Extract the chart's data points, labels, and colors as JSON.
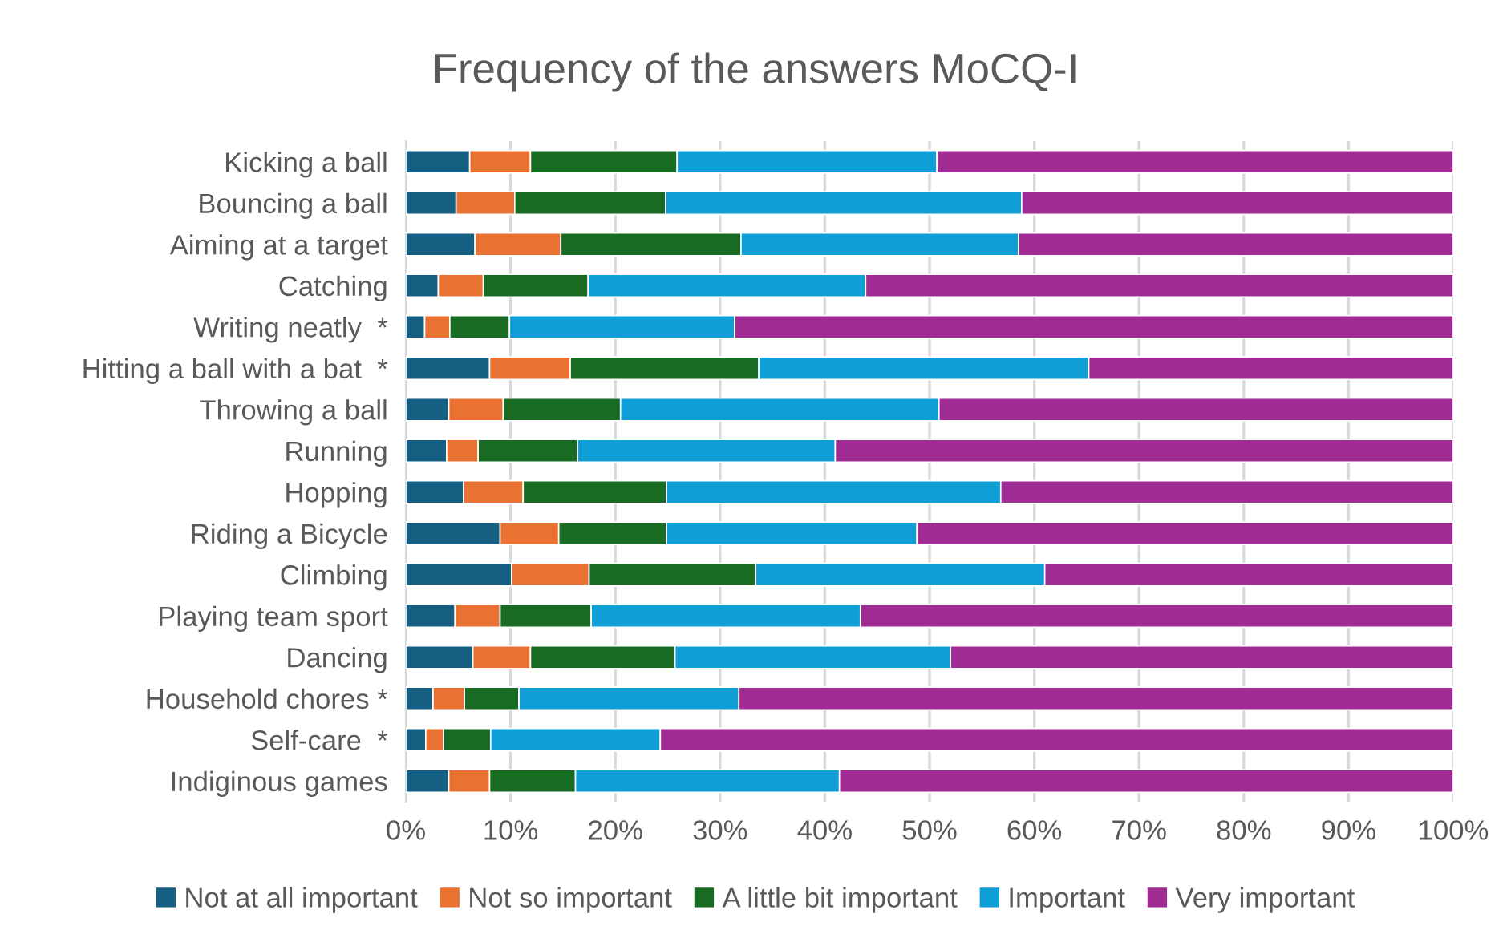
{
  "chart_data": {
    "type": "bar",
    "orientation": "horizontal",
    "stacked": true,
    "title": "Frequency of the answers MoCQ-I",
    "categories": [
      "Kicking a ball",
      "Bouncing a ball",
      "Aiming at a target",
      "Catching",
      "Writing neatly  *",
      "Hitting a ball with a bat  *",
      "Throwing a ball",
      "Running",
      "Hopping",
      "Riding a Bicycle",
      "Climbing",
      "Playing team sport",
      "Dancing",
      "Household chores *",
      "Self-care  *",
      "Indiginous games"
    ],
    "series": [
      {
        "name": "Not at all important",
        "color": "#156082",
        "values": [
          6.1,
          4.8,
          6.6,
          3.1,
          1.8,
          8.0,
          4.1,
          3.9,
          5.5,
          9.0,
          10.1,
          4.7,
          6.4,
          2.6,
          1.9,
          4.1
        ]
      },
      {
        "name": "Not so important",
        "color": "#e97132",
        "values": [
          5.8,
          5.6,
          8.2,
          4.3,
          2.4,
          7.7,
          5.2,
          3.0,
          5.7,
          5.6,
          7.4,
          4.3,
          5.5,
          3.0,
          1.7,
          3.9
        ]
      },
      {
        "name": "A little bit important",
        "color": "#196b24",
        "values": [
          14.0,
          14.4,
          17.2,
          10.0,
          5.7,
          18.0,
          11.2,
          9.5,
          13.7,
          10.3,
          15.9,
          8.7,
          13.8,
          5.2,
          4.5,
          8.2
        ]
      },
      {
        "name": "Important",
        "color": "#0f9ed5",
        "values": [
          24.8,
          34.0,
          26.5,
          26.5,
          21.5,
          31.5,
          30.4,
          24.6,
          31.9,
          23.9,
          27.6,
          25.7,
          26.3,
          21.0,
          16.2,
          25.2
        ]
      },
      {
        "name": "Very important",
        "color": "#a02b93",
        "values": [
          49.3,
          41.2,
          41.5,
          56.1,
          68.6,
          34.8,
          49.1,
          59.0,
          43.2,
          51.2,
          39.0,
          56.6,
          48.0,
          68.2,
          75.7,
          58.6
        ]
      }
    ],
    "xlim": [
      0,
      100
    ],
    "xticks": [
      {
        "value": 0,
        "label": "0%"
      },
      {
        "value": 10,
        "label": "10%"
      },
      {
        "value": 20,
        "label": "20%"
      },
      {
        "value": 30,
        "label": "30%"
      },
      {
        "value": 40,
        "label": "40%"
      },
      {
        "value": 50,
        "label": "50%"
      },
      {
        "value": 60,
        "label": "60%"
      },
      {
        "value": 70,
        "label": "70%"
      },
      {
        "value": 80,
        "label": "80%"
      },
      {
        "value": 90,
        "label": "90%"
      },
      {
        "value": 100,
        "label": "100%"
      }
    ],
    "grid": "x",
    "legend": "bottom"
  }
}
